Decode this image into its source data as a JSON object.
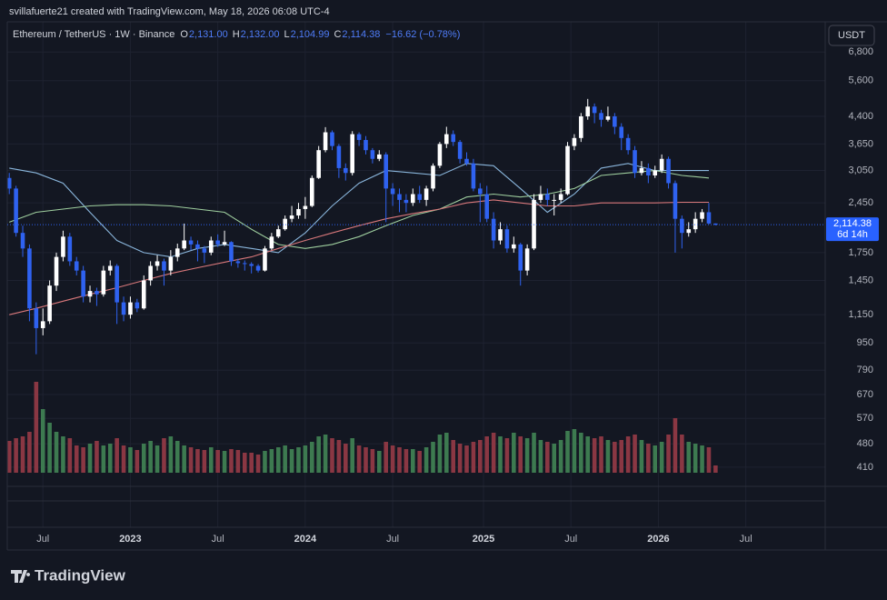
{
  "watermark": "svillafuerte21 created with TradingView.com, May 18, 2026 06:08 UTC-4",
  "header": {
    "symbol": "Ethereum / TetherUS · 1W · Binance",
    "ohlc": [
      {
        "key": "O",
        "value": "2,131.00"
      },
      {
        "key": "H",
        "value": "2,132.00"
      },
      {
        "key": "L",
        "value": "2,104.99"
      },
      {
        "key": "C",
        "value": "2,114.38"
      }
    ],
    "change": "−16.62 (−0.78%)"
  },
  "currency_button": "USDT",
  "price_tag": {
    "price": "2,114.38",
    "countdown": "6d 14h"
  },
  "logo": "TradingView",
  "chart_data": {
    "type": "candlestick",
    "log_scale": true,
    "grid": true,
    "up_color": "#ffffff",
    "down_color": "#2f62f0",
    "volume_up_color": "#3d7a50",
    "volume_down_color": "#8a3743",
    "ylim": [
      360,
      8340
    ],
    "yticks": [
      {
        "value": 6800,
        "label": "6,800"
      },
      {
        "value": 5600,
        "label": "5,600"
      },
      {
        "value": 4400,
        "label": "4,400"
      },
      {
        "value": 3650,
        "label": "3,650"
      },
      {
        "value": 3050,
        "label": "3,050"
      },
      {
        "value": 2450,
        "label": "2,450"
      },
      {
        "value": 1750,
        "label": "1,750"
      },
      {
        "value": 1450,
        "label": "1,450"
      },
      {
        "value": 1150,
        "label": "1,150"
      },
      950,
      790,
      670,
      570,
      480,
      410
    ],
    "xlim": [
      -0.3,
      121.3
    ],
    "xticks": [
      {
        "value": 5,
        "label": "Jul"
      },
      {
        "value": 18,
        "label": "2023"
      },
      {
        "value": 31,
        "label": "Jul"
      },
      {
        "value": 44,
        "label": "2024"
      },
      {
        "value": 57,
        "label": "Jul"
      },
      {
        "value": 70.5,
        "label": "2025"
      },
      {
        "value": 83.5,
        "label": "Jul"
      },
      {
        "value": 96.5,
        "label": "2026"
      },
      {
        "value": 109.5,
        "label": "Jul"
      }
    ],
    "candles": [
      [
        2900,
        3000,
        2600,
        2700
      ],
      [
        2700,
        2750,
        1950,
        2000
      ],
      [
        2000,
        2100,
        1700,
        1800
      ],
      [
        1800,
        1850,
        1100,
        1200
      ],
      [
        1200,
        1250,
        880,
        1050
      ],
      [
        1050,
        1200,
        1000,
        1100
      ],
      [
        1100,
        1450,
        1080,
        1400
      ],
      [
        1400,
        1750,
        1350,
        1700
      ],
      [
        1700,
        2030,
        1650,
        1950
      ],
      [
        1950,
        2000,
        1600,
        1650
      ],
      [
        1650,
        1700,
        1500,
        1550
      ],
      [
        1550,
        1600,
        1250,
        1300
      ],
      [
        1300,
        1400,
        1250,
        1350
      ],
      [
        1350,
        1380,
        1220,
        1320
      ],
      [
        1320,
        1600,
        1300,
        1550
      ],
      [
        1550,
        1660,
        1500,
        1600
      ],
      [
        1600,
        1620,
        1080,
        1250
      ],
      [
        1250,
        1300,
        1100,
        1150
      ],
      [
        1150,
        1300,
        1120,
        1250
      ],
      [
        1250,
        1280,
        1170,
        1200
      ],
      [
        1200,
        1500,
        1190,
        1450
      ],
      [
        1450,
        1650,
        1400,
        1600
      ],
      [
        1600,
        1720,
        1550,
        1650
      ],
      [
        1650,
        1680,
        1400,
        1550
      ],
      [
        1550,
        1780,
        1500,
        1700
      ],
      [
        1700,
        1860,
        1650,
        1800
      ],
      [
        1800,
        2130,
        1780,
        1900
      ],
      [
        1900,
        1950,
        1780,
        1850
      ],
      [
        1850,
        1900,
        1650,
        1800
      ],
      [
        1800,
        1830,
        1630,
        1750
      ],
      [
        1750,
        1950,
        1720,
        1900
      ],
      [
        1900,
        1980,
        1820,
        1850
      ],
      [
        1850,
        2030,
        1830,
        1880
      ],
      [
        1880,
        1890,
        1600,
        1650
      ],
      [
        1650,
        1680,
        1580,
        1630
      ],
      [
        1630,
        1660,
        1550,
        1620
      ],
      [
        1620,
        1640,
        1520,
        1600
      ],
      [
        1600,
        1620,
        1530,
        1550
      ],
      [
        1550,
        1830,
        1540,
        1800
      ],
      [
        1800,
        2000,
        1780,
        1950
      ],
      [
        1950,
        2100,
        1930,
        2050
      ],
      [
        2050,
        2250,
        2030,
        2200
      ],
      [
        2200,
        2400,
        2150,
        2250
      ],
      [
        2250,
        2450,
        2200,
        2350
      ],
      [
        2350,
        2550,
        2200,
        2400
      ],
      [
        2400,
        2950,
        2380,
        2900
      ],
      [
        2900,
        3600,
        2880,
        3500
      ],
      [
        3500,
        4090,
        3450,
        3950
      ],
      [
        3950,
        4000,
        3500,
        3600
      ],
      [
        3600,
        3650,
        2900,
        3100
      ],
      [
        3100,
        3200,
        2850,
        3000
      ],
      [
        3000,
        3980,
        2950,
        3900
      ],
      [
        3900,
        3950,
        3600,
        3750
      ],
      [
        3750,
        3850,
        3400,
        3500
      ],
      [
        3500,
        3550,
        3200,
        3300
      ],
      [
        3300,
        3500,
        3250,
        3400
      ],
      [
        3400,
        3450,
        2150,
        2700
      ],
      [
        2700,
        2800,
        2400,
        2600
      ],
      [
        2600,
        2700,
        2300,
        2500
      ],
      [
        2500,
        2600,
        2300,
        2450
      ],
      [
        2450,
        2700,
        2400,
        2600
      ],
      [
        2600,
        2750,
        2450,
        2500
      ],
      [
        2500,
        2750,
        2400,
        2700
      ],
      [
        2700,
        3200,
        2650,
        3150
      ],
      [
        3150,
        3700,
        3100,
        3650
      ],
      [
        3650,
        4100,
        3550,
        3900
      ],
      [
        3900,
        4000,
        3600,
        3700
      ],
      [
        3700,
        3750,
        3200,
        3300
      ],
      [
        3300,
        3450,
        3150,
        3200
      ],
      [
        3200,
        3300,
        2650,
        2700
      ],
      [
        2700,
        2800,
        2150,
        2600
      ],
      [
        2600,
        2750,
        2150,
        2200
      ],
      [
        2200,
        2300,
        1800,
        1900
      ],
      [
        1900,
        2150,
        1850,
        2050
      ],
      [
        2050,
        2100,
        1750,
        1800
      ],
      [
        1800,
        1950,
        1750,
        1850
      ],
      [
        1850,
        1870,
        1400,
        1550
      ],
      [
        1550,
        1850,
        1500,
        1800
      ],
      [
        1800,
        2600,
        1780,
        2500
      ],
      [
        2500,
        2750,
        2450,
        2600
      ],
      [
        2600,
        2700,
        2400,
        2500
      ],
      [
        2500,
        2600,
        2250,
        2500
      ],
      [
        2500,
        2700,
        2450,
        2600
      ],
      [
        2600,
        3700,
        2580,
        3600
      ],
      [
        3600,
        3900,
        3500,
        3800
      ],
      [
        3800,
        4500,
        3700,
        4400
      ],
      [
        4400,
        4950,
        4300,
        4700
      ],
      [
        4700,
        4800,
        4200,
        4500
      ],
      [
        4500,
        4600,
        4100,
        4300
      ],
      [
        4300,
        4700,
        4250,
        4400
      ],
      [
        4400,
        4500,
        3900,
        4100
      ],
      [
        4100,
        4200,
        3500,
        3800
      ],
      [
        3800,
        3900,
        3400,
        3500
      ],
      [
        3500,
        3600,
        2900,
        3000
      ],
      [
        3000,
        3250,
        2950,
        3100
      ],
      [
        3100,
        3200,
        2800,
        2950
      ],
      [
        2950,
        3150,
        2900,
        3050
      ],
      [
        3050,
        3400,
        3000,
        3300
      ],
      [
        3300,
        3350,
        2700,
        2800
      ],
      [
        2800,
        2850,
        1750,
        2200
      ],
      [
        2200,
        2250,
        1800,
        2000
      ],
      [
        2000,
        2150,
        1950,
        2050
      ],
      [
        2050,
        2300,
        2000,
        2200
      ],
      [
        2200,
        2350,
        2150,
        2300
      ],
      [
        2300,
        2450,
        2120,
        2131
      ],
      [
        2131,
        2132,
        2104.99,
        2114.38
      ]
    ],
    "vlim": [
      0,
      130
    ],
    "volume": [
      35,
      38,
      40,
      45,
      100,
      70,
      55,
      45,
      40,
      38,
      30,
      28,
      32,
      35,
      30,
      32,
      38,
      30,
      28,
      25,
      32,
      35,
      30,
      38,
      40,
      35,
      30,
      28,
      26,
      25,
      28,
      25,
      24,
      26,
      25,
      22,
      22,
      20,
      24,
      26,
      28,
      30,
      26,
      28,
      30,
      34,
      40,
      42,
      38,
      36,
      32,
      38,
      30,
      28,
      26,
      24,
      34,
      30,
      28,
      26,
      26,
      24,
      28,
      34,
      42,
      44,
      36,
      32,
      30,
      34,
      36,
      40,
      44,
      40,
      38,
      44,
      40,
      38,
      44,
      36,
      34,
      32,
      36,
      46,
      48,
      44,
      40,
      38,
      40,
      36,
      34,
      36,
      40,
      42,
      36,
      32,
      30,
      34,
      42,
      60,
      42,
      34,
      32,
      30,
      28,
      8
    ],
    "ma_x": [
      0,
      4,
      8,
      12,
      16,
      20,
      24,
      28,
      32,
      36,
      40,
      44,
      48,
      52,
      56,
      60,
      64,
      68,
      72,
      76,
      80,
      84,
      88,
      92,
      96,
      100,
      104
    ],
    "series": [
      {
        "color": "#8ab6dc",
        "values": [
          3100,
          3000,
          2800,
          2300,
          1900,
          1750,
          1700,
          1800,
          1850,
          1800,
          1750,
          2000,
          2400,
          2800,
          3050,
          3000,
          2950,
          3200,
          3150,
          2700,
          2300,
          2600,
          3100,
          3200,
          3050,
          3050,
          3050
        ]
      },
      {
        "color": "#9fcf9f",
        "values": [
          2150,
          2300,
          2350,
          2400,
          2420,
          2420,
          2400,
          2350,
          2300,
          2050,
          1850,
          1800,
          1850,
          1950,
          2100,
          2250,
          2350,
          2550,
          2600,
          2550,
          2600,
          2700,
          2950,
          3000,
          3050,
          2950,
          2900
        ]
      },
      {
        "color": "#d9787b",
        "values": [
          1150,
          1200,
          1260,
          1320,
          1380,
          1450,
          1520,
          1580,
          1640,
          1700,
          1800,
          1900,
          2000,
          2100,
          2200,
          2280,
          2350,
          2450,
          2500,
          2450,
          2400,
          2400,
          2450,
          2450,
          2450,
          2460,
          2460
        ]
      }
    ]
  }
}
